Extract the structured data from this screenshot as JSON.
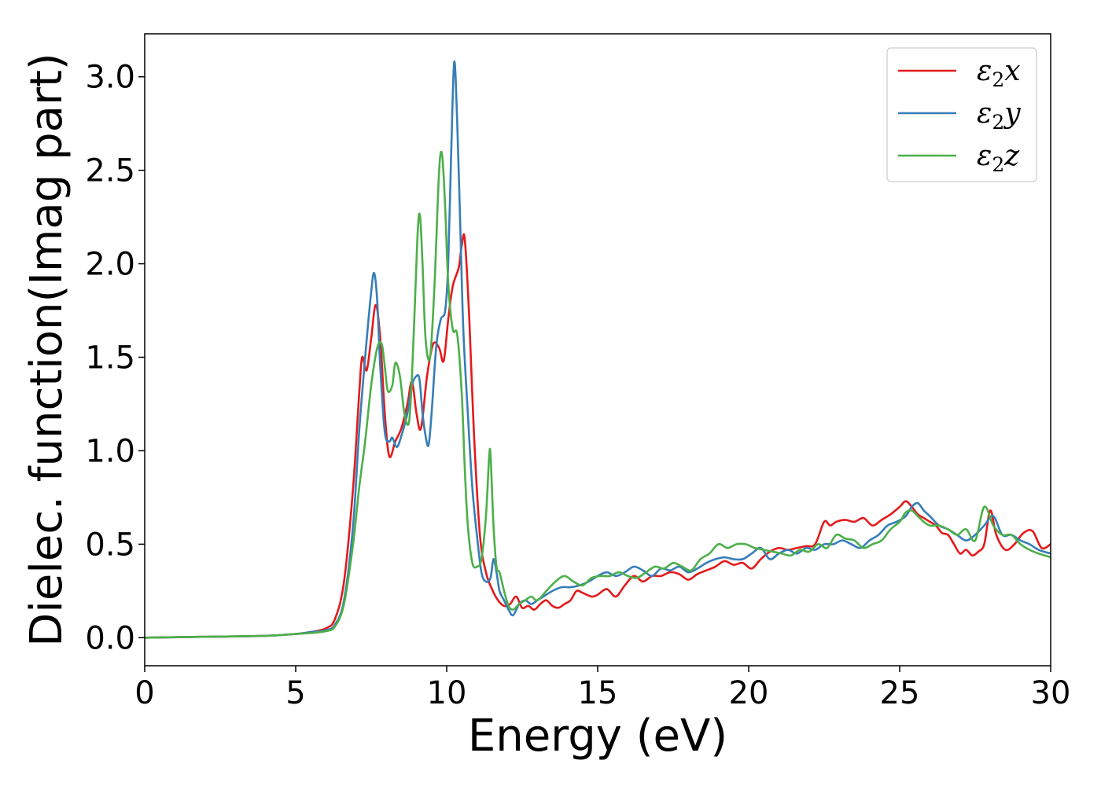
{
  "chart_data": {
    "type": "line",
    "xlabel": "Energy (eV)",
    "ylabel": "Dielec. function(Imag part)",
    "xlim": [
      0,
      30
    ],
    "ylim": [
      -0.15,
      3.23
    ],
    "xticks": [
      0,
      5,
      10,
      15,
      20,
      25,
      30
    ],
    "xtick_labels": [
      "0",
      "5",
      "10",
      "15",
      "20",
      "25",
      "30"
    ],
    "yticks": [
      0.0,
      0.5,
      1.0,
      1.5,
      2.0,
      2.5,
      3.0
    ],
    "ytick_labels": [
      "0.0",
      "0.5",
      "1.0",
      "1.5",
      "2.0",
      "2.5",
      "3.0"
    ],
    "grid": false,
    "legend_position": "top-right",
    "series": [
      {
        "name": "ε2x",
        "color": "#e41a1c",
        "x": [
          0,
          2,
          4,
          5,
          5.5,
          6,
          6.3,
          6.6,
          6.9,
          7.1,
          7.2,
          7.35,
          7.5,
          7.65,
          7.8,
          7.95,
          8.1,
          8.3,
          8.5,
          8.7,
          8.85,
          9.0,
          9.15,
          9.35,
          9.55,
          9.75,
          9.9,
          10.05,
          10.2,
          10.4,
          10.5,
          10.6,
          10.75,
          10.9,
          11.1,
          11.3,
          11.5,
          11.7,
          11.9,
          12.1,
          12.3,
          12.5,
          12.7,
          12.9,
          13.1,
          13.3,
          13.5,
          13.7,
          13.9,
          14.1,
          14.3,
          14.5,
          14.8,
          15.0,
          15.3,
          15.6,
          15.9,
          16.2,
          16.5,
          16.8,
          17.1,
          17.4,
          17.7,
          18.0,
          18.3,
          18.6,
          18.9,
          19.2,
          19.5,
          19.8,
          20.1,
          20.4,
          20.7,
          21.0,
          21.3,
          21.6,
          21.9,
          22.2,
          22.5,
          22.7,
          22.9,
          23.2,
          23.5,
          23.8,
          24.1,
          24.4,
          24.7,
          25.0,
          25.2,
          25.4,
          25.6,
          25.8,
          26.0,
          26.2,
          26.4,
          26.6,
          26.8,
          27.0,
          27.2,
          27.4,
          27.6,
          27.8,
          28.0,
          28.2,
          28.5,
          28.8,
          29.1,
          29.4,
          29.7,
          30.0
        ],
        "y": [
          0.0,
          0.005,
          0.01,
          0.02,
          0.03,
          0.05,
          0.1,
          0.3,
          0.8,
          1.3,
          1.5,
          1.43,
          1.6,
          1.78,
          1.6,
          1.2,
          0.97,
          1.05,
          1.12,
          1.25,
          1.37,
          1.2,
          1.12,
          1.4,
          1.57,
          1.55,
          1.48,
          1.7,
          1.88,
          1.98,
          2.1,
          2.13,
          1.7,
          1.1,
          0.55,
          0.35,
          0.26,
          0.2,
          0.17,
          0.18,
          0.22,
          0.16,
          0.17,
          0.15,
          0.18,
          0.2,
          0.17,
          0.16,
          0.18,
          0.2,
          0.25,
          0.24,
          0.22,
          0.23,
          0.26,
          0.22,
          0.28,
          0.33,
          0.3,
          0.33,
          0.33,
          0.35,
          0.34,
          0.31,
          0.34,
          0.36,
          0.38,
          0.41,
          0.39,
          0.4,
          0.37,
          0.42,
          0.46,
          0.48,
          0.47,
          0.48,
          0.49,
          0.5,
          0.62,
          0.6,
          0.62,
          0.63,
          0.62,
          0.64,
          0.6,
          0.63,
          0.66,
          0.7,
          0.73,
          0.7,
          0.66,
          0.64,
          0.62,
          0.6,
          0.56,
          0.55,
          0.5,
          0.45,
          0.47,
          0.44,
          0.46,
          0.5,
          0.68,
          0.55,
          0.47,
          0.5,
          0.56,
          0.57,
          0.48,
          0.5
        ],
        "label_text": "ε",
        "label_sub": "2",
        "label_suffix": "x"
      },
      {
        "name": "ε2y",
        "color": "#377eb8",
        "x": [
          0,
          2,
          4,
          5,
          5.5,
          6,
          6.3,
          6.6,
          6.9,
          7.1,
          7.3,
          7.5,
          7.6,
          7.7,
          7.8,
          7.95,
          8.1,
          8.2,
          8.35,
          8.5,
          8.7,
          8.85,
          9.0,
          9.1,
          9.2,
          9.3,
          9.4,
          9.5,
          9.65,
          9.8,
          9.95,
          10.05,
          10.15,
          10.25,
          10.35,
          10.45,
          10.55,
          10.7,
          10.85,
          11.0,
          11.15,
          11.3,
          11.45,
          11.55,
          11.65,
          11.75,
          11.9,
          12.05,
          12.2,
          12.4,
          12.6,
          12.8,
          13.0,
          13.2,
          13.5,
          13.8,
          14.1,
          14.4,
          14.7,
          15.0,
          15.3,
          15.6,
          15.9,
          16.2,
          16.5,
          16.8,
          17.1,
          17.4,
          17.7,
          18.0,
          18.3,
          18.6,
          18.9,
          19.2,
          19.5,
          19.8,
          20.1,
          20.4,
          20.7,
          21.0,
          21.3,
          21.6,
          21.9,
          22.2,
          22.5,
          22.8,
          23.1,
          23.4,
          23.7,
          24.0,
          24.3,
          24.6,
          24.9,
          25.2,
          25.4,
          25.6,
          25.8,
          26.0,
          26.3,
          26.6,
          26.9,
          27.2,
          27.5,
          27.8,
          28.1,
          28.4,
          28.7,
          29.0,
          29.3,
          29.6,
          30.0
        ],
        "y": [
          0.0,
          0.005,
          0.01,
          0.02,
          0.03,
          0.04,
          0.07,
          0.2,
          0.6,
          1.1,
          1.5,
          1.85,
          1.95,
          1.8,
          1.45,
          1.1,
          1.05,
          1.07,
          1.02,
          1.08,
          1.2,
          1.35,
          1.4,
          1.38,
          1.2,
          1.08,
          1.03,
          1.2,
          1.55,
          1.7,
          1.75,
          2.0,
          2.6,
          3.08,
          2.75,
          2.2,
          1.65,
          1.2,
          0.8,
          0.55,
          0.35,
          0.3,
          0.32,
          0.42,
          0.35,
          0.25,
          0.2,
          0.15,
          0.12,
          0.18,
          0.2,
          0.18,
          0.2,
          0.22,
          0.25,
          0.27,
          0.27,
          0.28,
          0.3,
          0.33,
          0.35,
          0.33,
          0.35,
          0.38,
          0.36,
          0.33,
          0.37,
          0.36,
          0.38,
          0.35,
          0.37,
          0.4,
          0.42,
          0.43,
          0.42,
          0.42,
          0.45,
          0.48,
          0.42,
          0.45,
          0.47,
          0.45,
          0.48,
          0.47,
          0.5,
          0.5,
          0.52,
          0.5,
          0.48,
          0.52,
          0.55,
          0.6,
          0.62,
          0.65,
          0.7,
          0.72,
          0.68,
          0.65,
          0.6,
          0.58,
          0.55,
          0.52,
          0.55,
          0.6,
          0.65,
          0.55,
          0.55,
          0.52,
          0.5,
          0.47,
          0.45
        ]
      },
      {
        "name": "ε2z",
        "color": "#4daf4a",
        "x": [
          0,
          2,
          4,
          5,
          5.5,
          6,
          6.3,
          6.6,
          6.9,
          7.1,
          7.3,
          7.5,
          7.7,
          7.85,
          7.95,
          8.05,
          8.2,
          8.3,
          8.45,
          8.6,
          8.75,
          8.85,
          8.95,
          9.05,
          9.12,
          9.2,
          9.3,
          9.45,
          9.6,
          9.75,
          9.85,
          9.95,
          10.05,
          10.2,
          10.35,
          10.5,
          10.6,
          10.7,
          10.85,
          11.0,
          11.15,
          11.3,
          11.4,
          11.45,
          11.55,
          11.65,
          11.75,
          11.9,
          12.05,
          12.2,
          12.4,
          12.6,
          12.8,
          13.0,
          13.3,
          13.6,
          13.9,
          14.2,
          14.5,
          14.8,
          15.1,
          15.4,
          15.7,
          16.0,
          16.3,
          16.6,
          16.9,
          17.2,
          17.5,
          17.8,
          18.1,
          18.4,
          18.7,
          19.0,
          19.3,
          19.6,
          19.9,
          20.2,
          20.5,
          20.8,
          21.1,
          21.4,
          21.7,
          22.0,
          22.3,
          22.6,
          22.9,
          23.2,
          23.5,
          23.8,
          24.1,
          24.4,
          24.7,
          25.0,
          25.2,
          25.4,
          25.6,
          25.8,
          26.0,
          26.3,
          26.6,
          26.9,
          27.2,
          27.5,
          27.8,
          28.1,
          28.4,
          28.7,
          29.0,
          29.3,
          29.6,
          30.0
        ],
        "y": [
          0.0,
          0.005,
          0.01,
          0.02,
          0.025,
          0.035,
          0.06,
          0.18,
          0.5,
          0.8,
          1.05,
          1.35,
          1.55,
          1.57,
          1.45,
          1.32,
          1.35,
          1.47,
          1.4,
          1.2,
          1.15,
          1.4,
          1.8,
          2.2,
          2.25,
          2.0,
          1.6,
          1.5,
          1.9,
          2.5,
          2.58,
          2.3,
          1.9,
          1.65,
          1.62,
          1.3,
          0.9,
          0.6,
          0.4,
          0.38,
          0.42,
          0.65,
          0.95,
          0.98,
          0.6,
          0.38,
          0.35,
          0.25,
          0.17,
          0.15,
          0.18,
          0.2,
          0.22,
          0.2,
          0.25,
          0.3,
          0.33,
          0.3,
          0.28,
          0.32,
          0.33,
          0.33,
          0.35,
          0.33,
          0.32,
          0.35,
          0.38,
          0.37,
          0.4,
          0.38,
          0.36,
          0.42,
          0.45,
          0.5,
          0.48,
          0.5,
          0.5,
          0.48,
          0.47,
          0.46,
          0.45,
          0.44,
          0.47,
          0.46,
          0.5,
          0.48,
          0.55,
          0.53,
          0.52,
          0.48,
          0.5,
          0.52,
          0.58,
          0.62,
          0.67,
          0.68,
          0.65,
          0.62,
          0.6,
          0.6,
          0.58,
          0.55,
          0.58,
          0.52,
          0.7,
          0.6,
          0.55,
          0.55,
          0.5,
          0.47,
          0.45,
          0.43
        ]
      }
    ]
  }
}
